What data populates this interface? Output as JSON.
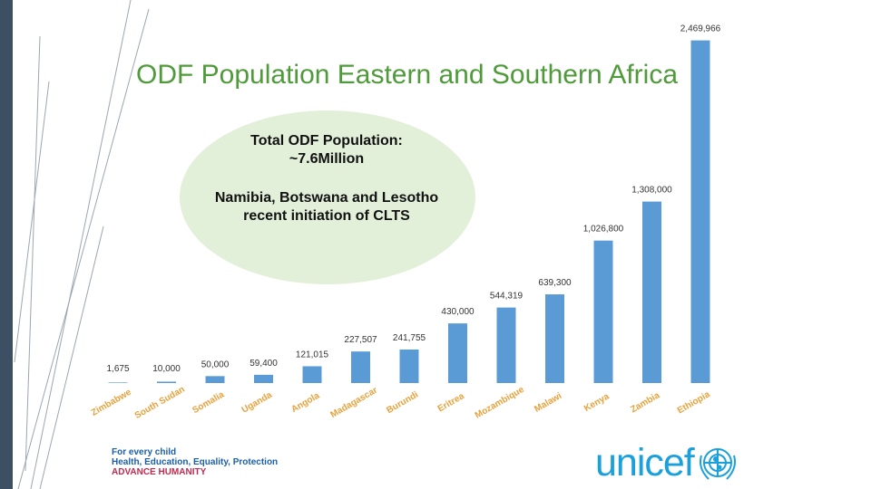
{
  "title": "ODF Population Eastern and Southern Africa",
  "callouts": {
    "total": "Total ODF Population: ~7.6Million",
    "note": "Namibia, Botswana and Lesotho recent initiation of CLTS"
  },
  "footer": {
    "line1": "For every child",
    "line2": "Health, Education, Equality, Protection",
    "line3": "ADVANCE HUMANITY"
  },
  "logo": {
    "text": "unicef",
    "icon": "un-emblem-icon"
  },
  "colors": {
    "bar": "#5b9bd5",
    "title": "#4f9a3a",
    "bubble": "#e2efd9",
    "brand": "#1aa0dc",
    "side": "#3d4f63"
  },
  "chart_data": {
    "type": "bar",
    "title": "ODF Population Eastern and Southern Africa",
    "xlabel": "",
    "ylabel": "",
    "ylim": [
      0,
      2500000
    ],
    "grid": false,
    "categories": [
      "Zimbabwe",
      "South Sudan",
      "Somalia",
      "Uganda",
      "Angola",
      "Madagascar",
      "Burundi",
      "Eritrea",
      "Mozambique",
      "Malawi",
      "Kenya",
      "Zambia",
      "Ethiopia"
    ],
    "values": [
      1675,
      10000,
      50000,
      59400,
      121015,
      227507,
      241755,
      430000,
      544319,
      639300,
      1026800,
      1308000,
      2469966
    ],
    "data_labels": [
      "1,675",
      "10,000",
      "50,000",
      "59,400",
      "121,015",
      "227,507",
      "241,755",
      "430,000",
      "544,319",
      "639,300",
      "1,026,800",
      "1,308,000",
      "2,469,966"
    ]
  }
}
